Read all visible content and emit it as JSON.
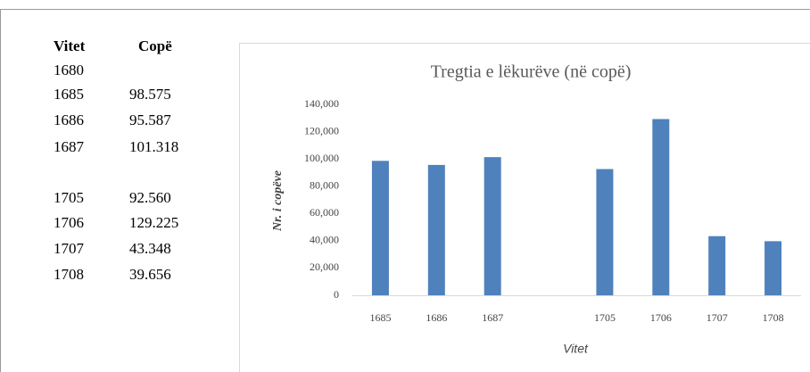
{
  "table": {
    "header": [
      "Vitet",
      "Copë"
    ],
    "rows": [
      [
        "1680"
      ],
      [
        "1685",
        "98.575"
      ],
      [
        "1686",
        "95.587"
      ],
      [
        "1687",
        "101.318"
      ],
      [
        "1705",
        "92.560"
      ],
      [
        "1706",
        "129.225"
      ],
      [
        "1707",
        "43.348"
      ],
      [
        "1708",
        "39.656"
      ]
    ]
  },
  "chart_data": {
    "type": "bar",
    "title": "Tregtia e lëkurëve (në copë)",
    "x_label": "Vitet",
    "y_label": "Nr. i copëve",
    "categories": [
      "1685",
      "1686",
      "1687",
      null,
      "1705",
      "1706",
      "1707",
      "1708"
    ],
    "values": [
      98575,
      95587,
      101318,
      null,
      92560,
      129225,
      43348,
      39656
    ],
    "color": "#4f81bd",
    "ylim": [
      0,
      140000
    ],
    "yticks": [
      0,
      {
        "value": 20000,
        "label": "20,000"
      },
      {
        "value": 40000,
        "label": "40,000"
      },
      {
        "value": 60000,
        "label": "60,000"
      },
      {
        "value": 80000,
        "label": "80,000"
      },
      {
        "value": 100000,
        "label": "100,000"
      },
      {
        "value": 120000,
        "label": "120,000"
      },
      {
        "value": 140000,
        "label": "140,000"
      }
    ],
    "grid": false
  }
}
